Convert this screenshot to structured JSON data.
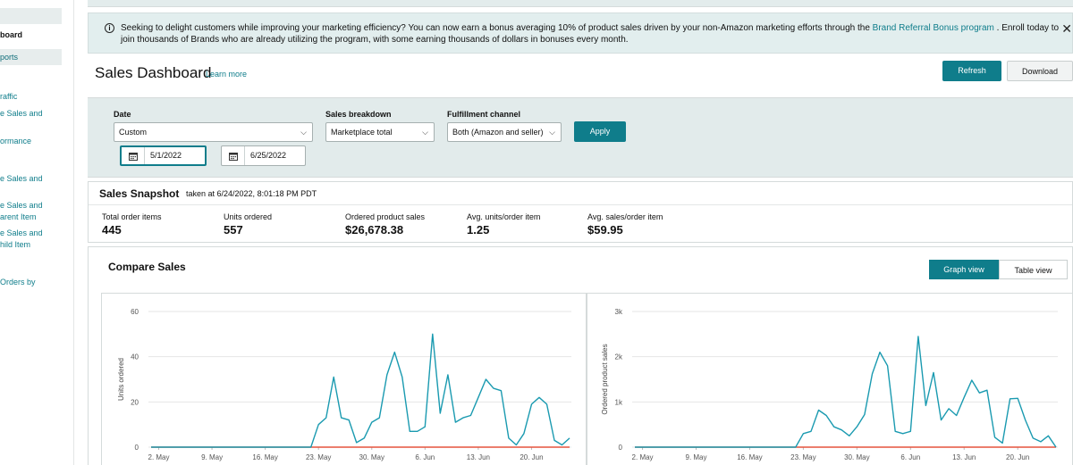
{
  "sidebar": {
    "items": [
      {
        "label": "board",
        "style": "active"
      },
      {
        "label": "ports",
        "style": "reports"
      },
      {
        "label": "raffic",
        "style": "link"
      },
      {
        "label": "e Sales and",
        "style": "link"
      },
      {
        "label": "ormance",
        "style": "link"
      },
      {
        "label": "e Sales and",
        "style": "link"
      },
      {
        "label": "e Sales and",
        "style": "link"
      },
      {
        "label": "arent Item",
        "style": "link"
      },
      {
        "label": "e Sales and",
        "style": "link"
      },
      {
        "label": "hild Item",
        "style": "link"
      },
      {
        "label": "Orders by",
        "style": "link"
      }
    ]
  },
  "banner": {
    "text_before": "Seeking to delight customers while improving your marketing efficiency? You can now earn a bonus averaging 10% of product sales driven by your non-Amazon marketing efforts through the ",
    "link": "Brand Referral Bonus program",
    "text_after": " . Enroll today to join thousands of Brands who are already utilizing the program, with some earning thousands of dollars in bonuses every month.",
    "close_glyph": "✕"
  },
  "header": {
    "title": "Sales Dashboard",
    "learn_more": "Learn more",
    "refresh": "Refresh",
    "download": "Download"
  },
  "filters": {
    "date_label": "Date",
    "date_value": "Custom",
    "start_date": "5/1/2022",
    "end_date": "6/25/2022",
    "breakdown_label": "Sales breakdown",
    "breakdown_value": "Marketplace total",
    "channel_label": "Fulfillment channel",
    "channel_value": "Both (Amazon and seller)",
    "apply": "Apply"
  },
  "snapshot": {
    "title": "Sales Snapshot",
    "taken": "taken at 6/24/2022, 8:01:18 PM PDT",
    "metrics": [
      {
        "label": "Total order items",
        "value": "445"
      },
      {
        "label": "Units ordered",
        "value": "557"
      },
      {
        "label": "Ordered product sales",
        "value": "$26,678.38"
      },
      {
        "label": "Avg. units/order item",
        "value": "1.25"
      },
      {
        "label": "Avg. sales/order item",
        "value": "$59.95"
      }
    ]
  },
  "compare": {
    "title": "Compare Sales",
    "graph_view": "Graph view",
    "table_view": "Table view"
  },
  "colors": {
    "accent": "#0f7d8b",
    "series_main": "#1a9ab0",
    "series_compare": "#e5533d"
  },
  "chart_data": [
    {
      "type": "line",
      "xlabel": "",
      "ylabel": "Units ordered",
      "ylim": [
        0,
        60
      ],
      "yticks": [
        "0",
        "20",
        "40",
        "60"
      ],
      "xticks": [
        "2. May",
        "9. May",
        "16. May",
        "23. May",
        "30. May",
        "6. Jun",
        "13. Jun",
        "20. Jun"
      ],
      "grid": true,
      "x_start": "2022-05-01",
      "series": [
        {
          "values": [
            0,
            0,
            0,
            0,
            0,
            0,
            0,
            0,
            0,
            0,
            0,
            0,
            0,
            0,
            0,
            0,
            0,
            0,
            0,
            0,
            0,
            0,
            10,
            13,
            31,
            13,
            12,
            2,
            4,
            11,
            13,
            32,
            42,
            31,
            7,
            7,
            9,
            50,
            15,
            32,
            11,
            13,
            14,
            22,
            30,
            26,
            25,
            4,
            1,
            6,
            19,
            22,
            19,
            3,
            1,
            4
          ]
        },
        {
          "values": [
            0,
            0,
            0,
            0,
            0,
            0,
            0,
            0,
            0,
            0,
            0,
            0,
            0,
            0,
            0,
            0,
            0,
            0,
            0,
            0,
            0,
            0,
            0,
            0,
            0,
            0,
            0,
            0,
            0,
            0,
            0,
            0,
            0,
            0,
            0,
            0,
            0,
            0,
            0,
            0,
            0,
            0,
            0,
            0,
            0,
            0,
            0,
            0,
            0,
            0,
            0,
            0,
            0,
            0,
            0,
            0
          ]
        }
      ]
    },
    {
      "type": "line",
      "xlabel": "",
      "ylabel": "Ordered product sales",
      "ylim": [
        0,
        3000
      ],
      "yticks": [
        "0",
        "1k",
        "2k",
        "3k"
      ],
      "xticks": [
        "2. May",
        "9. May",
        "16. May",
        "23. May",
        "30. May",
        "6. Jun",
        "13. Jun",
        "20. Jun"
      ],
      "grid": true,
      "x_start": "2022-05-01",
      "series": [
        {
          "values": [
            0,
            0,
            0,
            0,
            0,
            0,
            0,
            0,
            0,
            0,
            0,
            0,
            0,
            0,
            0,
            0,
            0,
            0,
            0,
            0,
            0,
            0,
            300,
            350,
            820,
            700,
            450,
            380,
            250,
            450,
            720,
            1620,
            2100,
            1800,
            350,
            300,
            350,
            2450,
            920,
            1650,
            600,
            850,
            700,
            1100,
            1480,
            1200,
            1260,
            220,
            90,
            1070,
            1080,
            600,
            200,
            120,
            250,
            0
          ]
        },
        {
          "values": [
            0,
            0,
            0,
            0,
            0,
            0,
            0,
            0,
            0,
            0,
            0,
            0,
            0,
            0,
            0,
            0,
            0,
            0,
            0,
            0,
            0,
            0,
            0,
            0,
            0,
            0,
            0,
            0,
            0,
            0,
            0,
            0,
            0,
            0,
            0,
            0,
            0,
            0,
            0,
            0,
            0,
            0,
            0,
            0,
            0,
            0,
            0,
            0,
            0,
            0,
            0,
            0,
            0,
            0,
            0,
            0
          ]
        }
      ]
    }
  ]
}
